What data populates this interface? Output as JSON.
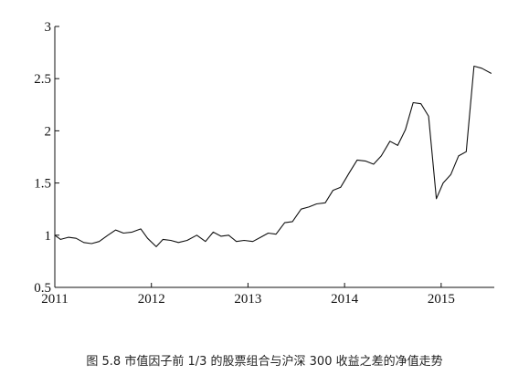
{
  "caption": "图 5.8   市值因子前 1/3 的股票组合与沪深 300 收益之差的净值走势",
  "chart_data": {
    "type": "line",
    "title": "",
    "xlabel": "",
    "ylabel": "",
    "xlim": [
      2011.0,
      2015.55
    ],
    "ylim": [
      0.5,
      3.0
    ],
    "x_ticks": [
      2011,
      2012,
      2013,
      2014,
      2015
    ],
    "x_tick_labels": [
      "2011",
      "2012",
      "2013",
      "2014",
      "2015"
    ],
    "y_ticks": [
      0.5,
      1,
      1.5,
      2,
      2.5,
      3
    ],
    "y_tick_labels": [
      "0.5",
      "1",
      "1.5",
      "2",
      "2.5",
      "3"
    ],
    "grid": false,
    "legend": "none",
    "line_color": "#111111",
    "series": [
      {
        "x": [
          2011.0,
          2011.06,
          2011.14,
          2011.22,
          2011.3,
          2011.38,
          2011.46,
          2011.55,
          2011.63,
          2011.71,
          2011.8,
          2011.89,
          2011.96,
          2012.05,
          2012.12,
          2012.2,
          2012.28,
          2012.37,
          2012.47,
          2012.56,
          2012.64,
          2012.72,
          2012.8,
          2012.88,
          2012.96,
          2013.05,
          2013.13,
          2013.21,
          2013.29,
          2013.38,
          2013.46,
          2013.55,
          2013.63,
          2013.71,
          2013.8,
          2013.88,
          2013.96,
          2014.05,
          2014.13,
          2014.22,
          2014.3,
          2014.38,
          2014.47,
          2014.55,
          2014.63,
          2014.71,
          2014.79,
          2014.87,
          2014.95,
          2015.02,
          2015.1,
          2015.18,
          2015.26,
          2015.34,
          2015.42,
          2015.52
        ],
        "y": [
          1.0,
          0.96,
          0.98,
          0.97,
          0.93,
          0.92,
          0.94,
          1.0,
          1.05,
          1.02,
          1.03,
          1.06,
          0.97,
          0.89,
          0.96,
          0.95,
          0.93,
          0.95,
          1.0,
          0.94,
          1.03,
          0.99,
          1.0,
          0.94,
          0.95,
          0.94,
          0.98,
          1.02,
          1.01,
          1.12,
          1.13,
          1.25,
          1.27,
          1.3,
          1.31,
          1.43,
          1.46,
          1.6,
          1.72,
          1.71,
          1.68,
          1.76,
          1.9,
          1.86,
          2.01,
          2.27,
          2.26,
          2.14,
          1.35,
          1.5,
          1.58,
          1.76,
          1.8,
          2.62,
          2.6,
          2.55
        ]
      }
    ]
  }
}
